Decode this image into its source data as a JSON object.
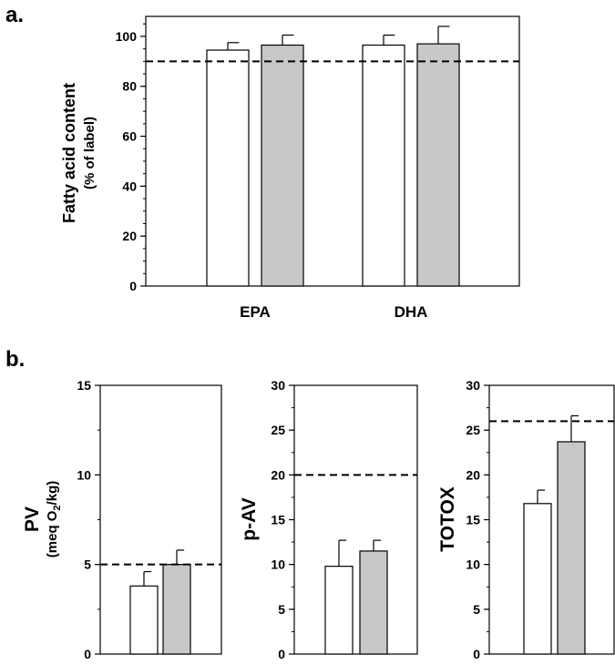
{
  "panels": {
    "a": "a.",
    "b": "b."
  },
  "colors": {
    "open_bar": "#ffffff",
    "filled_bar": "#c8c8c8",
    "stroke": "#000000"
  },
  "chart_data": [
    {
      "type": "bar",
      "panel": "a.",
      "categories": [
        "EPA",
        "DHA"
      ],
      "series": [
        {
          "values": [
            94.5,
            96.5
          ],
          "errors": [
            3,
            4
          ],
          "color": "#ffffff"
        },
        {
          "values": [
            96.5,
            97
          ],
          "errors": [
            4,
            7
          ],
          "color": "#c8c8c8"
        }
      ],
      "ylabel": "Fatty acid content",
      "ylabel_line2": "(% of label)",
      "ylim": [
        0,
        108
      ],
      "yticks": [
        0,
        20,
        40,
        60,
        80,
        100
      ],
      "reference_line": 90,
      "grid": false
    },
    {
      "type": "bar",
      "panel": "b.",
      "categories": [
        ""
      ],
      "series": [
        {
          "values": [
            3.8
          ],
          "errors": [
            0.8
          ],
          "color": "#ffffff"
        },
        {
          "values": [
            5.0
          ],
          "errors": [
            0.8
          ],
          "color": "#c8c8c8"
        }
      ],
      "ylabel": "PV",
      "ylabel_line2_prefix": "(meq O",
      "ylabel_line2_sub": "2",
      "ylabel_line2_suffix": "/kg)",
      "ylim": [
        0,
        15
      ],
      "yticks": [
        0,
        5,
        10,
        15
      ],
      "reference_line": 5,
      "grid": false
    },
    {
      "type": "bar",
      "panel": "b.",
      "categories": [
        ""
      ],
      "series": [
        {
          "values": [
            9.8
          ],
          "errors": [
            2.9
          ],
          "color": "#ffffff"
        },
        {
          "values": [
            11.5
          ],
          "errors": [
            1.2
          ],
          "color": "#c8c8c8"
        }
      ],
      "ylabel": "p-AV",
      "ylim": [
        0,
        30
      ],
      "yticks": [
        0,
        5,
        10,
        15,
        20,
        25,
        30
      ],
      "reference_line": 20,
      "grid": false
    },
    {
      "type": "bar",
      "panel": "b.",
      "categories": [
        ""
      ],
      "series": [
        {
          "values": [
            16.8
          ],
          "errors": [
            1.5
          ],
          "color": "#ffffff"
        },
        {
          "values": [
            23.7
          ],
          "errors": [
            2.9
          ],
          "color": "#c8c8c8"
        }
      ],
      "ylabel": "TOTOX",
      "ylim": [
        0,
        30
      ],
      "yticks": [
        0,
        5,
        10,
        15,
        20,
        25,
        30
      ],
      "reference_line": 26,
      "grid": false
    }
  ]
}
